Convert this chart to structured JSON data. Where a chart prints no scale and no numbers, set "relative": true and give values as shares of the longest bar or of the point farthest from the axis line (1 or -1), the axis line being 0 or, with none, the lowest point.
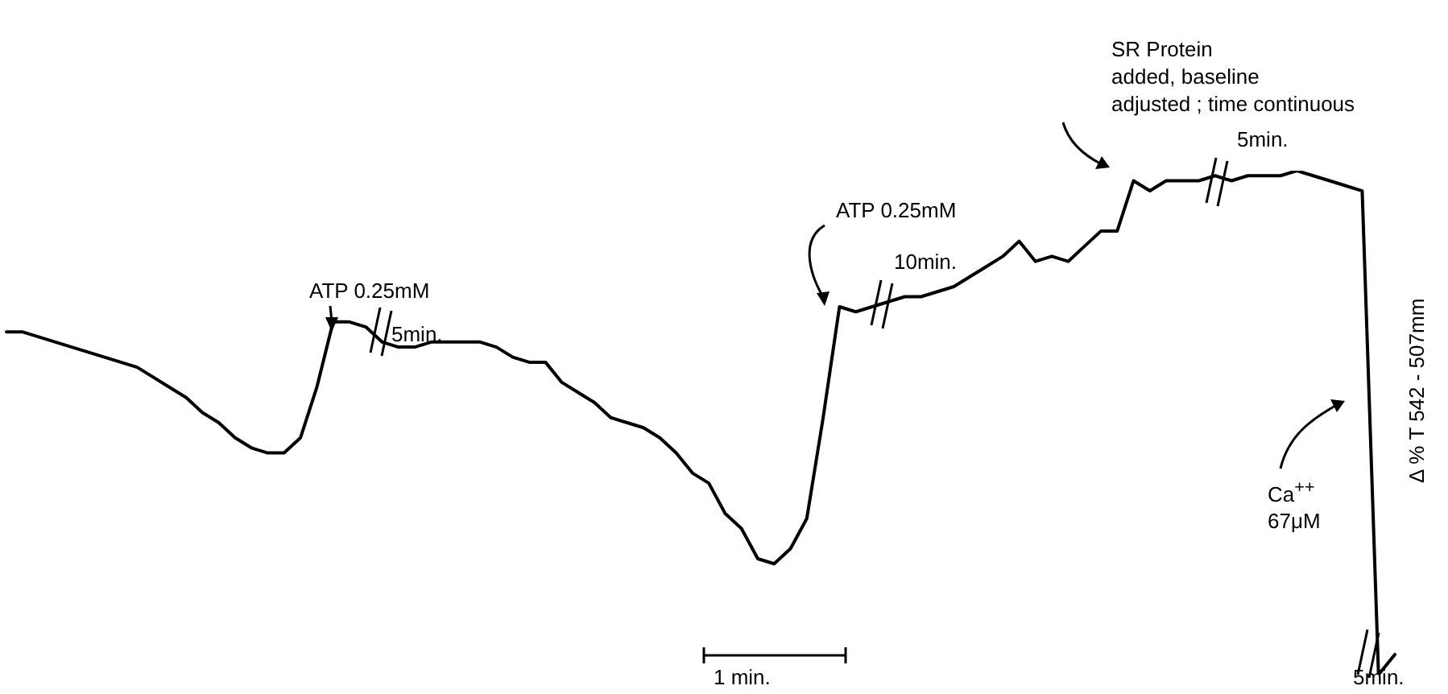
{
  "chart_data": {
    "type": "line",
    "relative": true,
    "ylabel": "Δ % T 542 - 507mm",
    "categories": [
      null,
      null,
      null,
      null,
      null,
      null,
      null,
      null,
      null,
      null,
      null,
      null,
      null,
      null,
      null,
      null,
      null,
      null,
      null,
      null,
      null,
      null,
      null,
      null,
      null,
      null,
      null,
      null,
      null,
      null,
      null,
      null,
      null,
      null,
      null,
      null,
      null,
      null,
      null,
      null,
      null,
      null,
      null,
      null,
      null,
      null,
      null,
      null,
      null,
      null,
      null,
      null,
      null,
      null,
      null,
      null,
      null,
      null,
      null,
      null,
      null,
      null,
      null,
      null,
      null,
      null,
      null,
      null,
      null,
      null,
      null,
      null,
      null,
      null,
      null,
      null,
      null,
      null,
      null,
      null,
      null,
      null,
      null,
      null,
      null,
      null
    ],
    "series": [
      {
        "color": "#000000",
        "values": [
          0.68,
          0.68,
          0.67,
          0.66,
          0.65,
          0.64,
          0.63,
          0.62,
          0.61,
          0.59,
          0.57,
          0.55,
          0.52,
          0.5,
          0.47,
          0.45,
          0.44,
          0.44,
          0.47,
          0.57,
          0.7,
          0.7,
          0.69,
          0.66,
          0.65,
          0.65,
          0.66,
          0.66,
          0.66,
          0.66,
          0.65,
          0.63,
          0.62,
          0.62,
          0.58,
          0.56,
          0.54,
          0.51,
          0.5,
          0.49,
          0.47,
          0.44,
          0.4,
          0.38,
          0.32,
          0.29,
          0.23,
          0.22,
          0.25,
          0.31,
          0.51,
          0.73,
          0.72,
          0.73,
          0.74,
          0.75,
          0.75,
          0.76,
          0.77,
          0.79,
          0.81,
          0.83,
          0.86,
          0.82,
          0.83,
          0.82,
          0.85,
          0.88,
          0.88,
          0.98,
          0.96,
          0.98,
          0.98,
          0.98,
          0.99,
          0.98,
          0.99,
          0.99,
          0.99,
          1,
          0.99,
          0.98,
          0.97,
          0.96,
          0,
          0.04
        ]
      }
    ],
    "annotations": [
      "ATP 0.25mM",
      "5min.",
      "ATP 0.25mM",
      "10min.",
      "SR Protein\nadded, baseline\nadjusted ; time continuous",
      "5min.",
      "Ca$^{++}$\n67μM",
      "5min.",
      "1 min."
    ],
    "legend": false,
    "marker": "none",
    "line_style": "solid"
  }
}
